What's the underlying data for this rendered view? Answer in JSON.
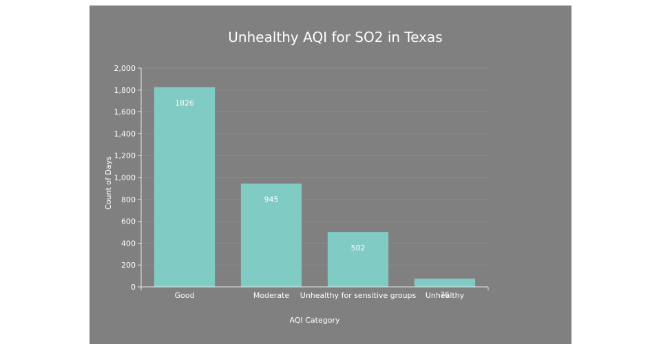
{
  "chart_data": {
    "type": "bar",
    "title": "Unhealthy AQI for SO2 in Texas",
    "xlabel": "AQI Category",
    "ylabel": "Count of Days",
    "categories": [
      "Good",
      "Moderate",
      "Unhealthy for sensitive groups",
      "Unhealthy"
    ],
    "values": [
      1826,
      945,
      502,
      76
    ],
    "data_labels": [
      "1826",
      "945",
      "502",
      "76"
    ],
    "ylim": [
      0,
      2000
    ],
    "yticks": [
      0,
      200,
      400,
      600,
      800,
      1000,
      1200,
      1400,
      1600,
      1800,
      2000
    ],
    "ytick_labels": [
      "0",
      "200",
      "400",
      "600",
      "800",
      "1,000",
      "1,200",
      "1,400",
      "1,600",
      "1,800",
      "2,000"
    ],
    "grid": true,
    "bar_color": "#80cbc4",
    "background_color": "#808080"
  }
}
